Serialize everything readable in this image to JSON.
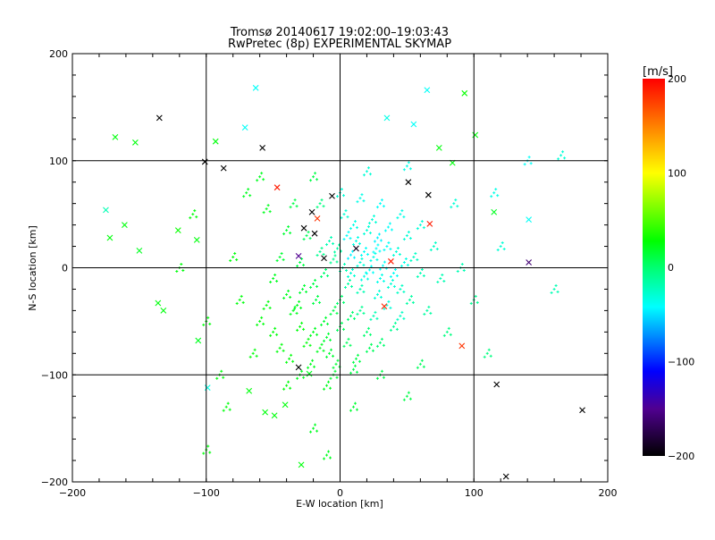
{
  "chart_data": {
    "type": "scatter",
    "title": "Tromsø 20140617 19:02:00–19:03:43",
    "subtitle": "RwPretec (8p) EXPERIMENTAL SKYMAP",
    "xlabel": "E-W location [km]",
    "ylabel": "N-S location [km]",
    "xlim": [
      -200,
      200
    ],
    "ylim": [
      -200,
      200
    ],
    "xticks": [
      "-200",
      "-100",
      "0",
      "100",
      "200"
    ],
    "yticks": [
      "-200",
      "-100",
      "0",
      "100",
      "200"
    ],
    "grid": true,
    "colorbar": {
      "label": "[m/s]",
      "range": [
        -200,
        200
      ],
      "ticks": [
        "200",
        "100",
        "0",
        "-100",
        "-200"
      ],
      "stops": [
        [
          200,
          "#ff0000"
        ],
        [
          150,
          "#ff8000"
        ],
        [
          100,
          "#ffff00"
        ],
        [
          28,
          "#00ff00"
        ],
        [
          0,
          "#00ff70"
        ],
        [
          -42,
          "#00ffff"
        ],
        [
          -110,
          "#0000ff"
        ],
        [
          -150,
          "#500090"
        ],
        [
          -200,
          "#000000"
        ]
      ]
    },
    "point_fields": [
      "x_km",
      "y_km",
      "velocity_ms"
    ],
    "x_markers": [
      [
        -135,
        140,
        -200
      ],
      [
        -58,
        112,
        -200
      ],
      [
        -87,
        93,
        -200
      ],
      [
        -101,
        99,
        -200
      ],
      [
        -6,
        67,
        -200
      ],
      [
        51,
        80,
        -200
      ],
      [
        66,
        68,
        -200
      ],
      [
        -21,
        52,
        -200
      ],
      [
        -27,
        37,
        -200
      ],
      [
        -19,
        32,
        -200
      ],
      [
        -12,
        9,
        -200
      ],
      [
        117,
        -109,
        -200
      ],
      [
        181,
        -133,
        -200
      ],
      [
        124,
        -195,
        -200
      ],
      [
        -31,
        -93,
        -200
      ],
      [
        12,
        18,
        -190
      ],
      [
        141,
        5,
        -160
      ],
      [
        -31,
        11,
        -150
      ],
      [
        -47,
        75,
        190
      ],
      [
        67,
        41,
        190
      ],
      [
        91,
        -73,
        180
      ],
      [
        38,
        6,
        190
      ],
      [
        33,
        -36,
        185
      ],
      [
        -17,
        46,
        180
      ],
      [
        -168,
        122,
        25
      ],
      [
        -153,
        117,
        25
      ],
      [
        -172,
        28,
        25
      ],
      [
        -175,
        54,
        -20
      ],
      [
        -161,
        40,
        25
      ],
      [
        -150,
        16,
        20
      ],
      [
        -121,
        35,
        30
      ],
      [
        -107,
        26,
        25
      ],
      [
        -106,
        -68,
        20
      ],
      [
        -136,
        -33,
        25
      ],
      [
        -132,
        -40,
        25
      ],
      [
        -93,
        118,
        25
      ],
      [
        -63,
        168,
        -40
      ],
      [
        -71,
        131,
        -40
      ],
      [
        93,
        163,
        30
      ],
      [
        101,
        124,
        25
      ],
      [
        115,
        52,
        20
      ],
      [
        141,
        45,
        -40
      ],
      [
        55,
        134,
        -40
      ],
      [
        74,
        112,
        25
      ],
      [
        84,
        98,
        25
      ],
      [
        65,
        166,
        -40
      ],
      [
        35,
        140,
        -35
      ],
      [
        -99,
        -112,
        -35
      ],
      [
        -68,
        -115,
        25
      ],
      [
        -56,
        -135,
        25
      ],
      [
        -29,
        -184,
        25
      ],
      [
        -49,
        -138,
        25
      ],
      [
        -41,
        -128,
        25
      ],
      [
        -23,
        -99,
        20
      ]
    ],
    "dot_markers": [
      [
        5,
        30,
        -40
      ],
      [
        12,
        25,
        -35
      ],
      [
        20,
        35,
        -30
      ],
      [
        28,
        28,
        -45
      ],
      [
        35,
        20,
        -40
      ],
      [
        42,
        15,
        -30
      ],
      [
        48,
        5,
        -35
      ],
      [
        40,
        -5,
        -40
      ],
      [
        30,
        -10,
        -35
      ],
      [
        22,
        -2,
        -40
      ],
      [
        15,
        5,
        -30
      ],
      [
        8,
        12,
        -45
      ],
      [
        2,
        0,
        -20
      ],
      [
        -5,
        8,
        -10
      ],
      [
        18,
        15,
        -40
      ],
      [
        25,
        10,
        -35
      ],
      [
        32,
        2,
        -40
      ],
      [
        38,
        -15,
        -30
      ],
      [
        45,
        -20,
        -25
      ],
      [
        28,
        -25,
        -30
      ],
      [
        15,
        -20,
        -20
      ],
      [
        6,
        -15,
        -15
      ],
      [
        10,
        40,
        -35
      ],
      [
        24,
        45,
        -30
      ],
      [
        36,
        38,
        -40
      ],
      [
        50,
        30,
        -30
      ],
      [
        55,
        10,
        -25
      ],
      [
        60,
        -5,
        -20
      ],
      [
        52,
        -30,
        -15
      ],
      [
        3,
        50,
        -30
      ],
      [
        -8,
        25,
        -20
      ],
      [
        -15,
        15,
        -10
      ],
      [
        0,
        -30,
        0
      ],
      [
        -5,
        -40,
        10
      ],
      [
        -12,
        -50,
        15
      ],
      [
        -20,
        -60,
        20
      ],
      [
        -25,
        -70,
        25
      ],
      [
        -10,
        -65,
        15
      ],
      [
        0,
        -55,
        5
      ],
      [
        8,
        -45,
        0
      ],
      [
        15,
        -40,
        -10
      ],
      [
        -30,
        -55,
        25
      ],
      [
        -35,
        -40,
        20
      ],
      [
        -40,
        -25,
        20
      ],
      [
        -28,
        -20,
        15
      ],
      [
        -18,
        -30,
        10
      ],
      [
        -45,
        -75,
        25
      ],
      [
        -38,
        -85,
        25
      ],
      [
        -22,
        -90,
        20
      ],
      [
        -8,
        -80,
        15
      ],
      [
        5,
        -70,
        5
      ],
      [
        12,
        -85,
        10
      ],
      [
        20,
        -60,
        0
      ],
      [
        -50,
        -60,
        25
      ],
      [
        -55,
        -35,
        25
      ],
      [
        -60,
        -50,
        25
      ],
      [
        -50,
        -10,
        20
      ],
      [
        -45,
        10,
        15
      ],
      [
        -30,
        5,
        10
      ],
      [
        -25,
        30,
        5
      ],
      [
        -40,
        35,
        15
      ],
      [
        -55,
        55,
        20
      ],
      [
        -35,
        60,
        10
      ],
      [
        -15,
        60,
        -5
      ],
      [
        0,
        70,
        -30
      ],
      [
        15,
        65,
        -35
      ],
      [
        30,
        60,
        -40
      ],
      [
        45,
        50,
        -35
      ],
      [
        60,
        40,
        -30
      ],
      [
        70,
        20,
        -25
      ],
      [
        75,
        -10,
        -20
      ],
      [
        65,
        -40,
        -15
      ],
      [
        40,
        -55,
        -10
      ],
      [
        30,
        -70,
        0
      ],
      [
        -65,
        -80,
        25
      ],
      [
        -75,
        -30,
        25
      ],
      [
        -80,
        10,
        25
      ],
      [
        -70,
        70,
        20
      ],
      [
        -60,
        85,
        20
      ],
      [
        -20,
        85,
        10
      ],
      [
        20,
        90,
        -30
      ],
      [
        50,
        95,
        -35
      ],
      [
        85,
        60,
        -30
      ],
      [
        90,
        0,
        -20
      ],
      [
        100,
        -30,
        -10
      ],
      [
        80,
        -60,
        -5
      ],
      [
        60,
        -90,
        5
      ],
      [
        30,
        -100,
        10
      ],
      [
        -10,
        -110,
        20
      ],
      [
        -40,
        -110,
        25
      ],
      [
        -90,
        -100,
        25
      ],
      [
        -100,
        -50,
        25
      ],
      [
        -120,
        0,
        25
      ],
      [
        -110,
        50,
        25
      ],
      [
        -85,
        -130,
        25
      ],
      [
        -20,
        -150,
        20
      ],
      [
        10,
        -130,
        15
      ],
      [
        50,
        -120,
        10
      ],
      [
        110,
        -80,
        -5
      ],
      [
        120,
        20,
        -30
      ],
      [
        115,
        70,
        -35
      ],
      [
        -100,
        -170,
        25
      ],
      [
        -10,
        -175,
        20
      ],
      [
        160,
        -20,
        -20
      ],
      [
        165,
        105,
        -30
      ],
      [
        140,
        100,
        -40
      ],
      [
        -5,
        -100,
        15
      ],
      [
        10,
        -95,
        10
      ],
      [
        -30,
        -100,
        20
      ],
      [
        25,
        -45,
        -20
      ],
      [
        35,
        -35,
        -30
      ],
      [
        45,
        -45,
        -25
      ],
      [
        18,
        -8,
        -35
      ],
      [
        27,
        18,
        -40
      ],
      [
        8,
        -5,
        -30
      ],
      [
        -2,
        18,
        -15
      ],
      [
        -12,
        -5,
        0
      ],
      [
        -20,
        -15,
        10
      ],
      [
        -32,
        -35,
        20
      ],
      [
        -15,
        -75,
        20
      ],
      [
        -3,
        -90,
        15
      ],
      [
        22,
        -75,
        5
      ]
    ]
  }
}
